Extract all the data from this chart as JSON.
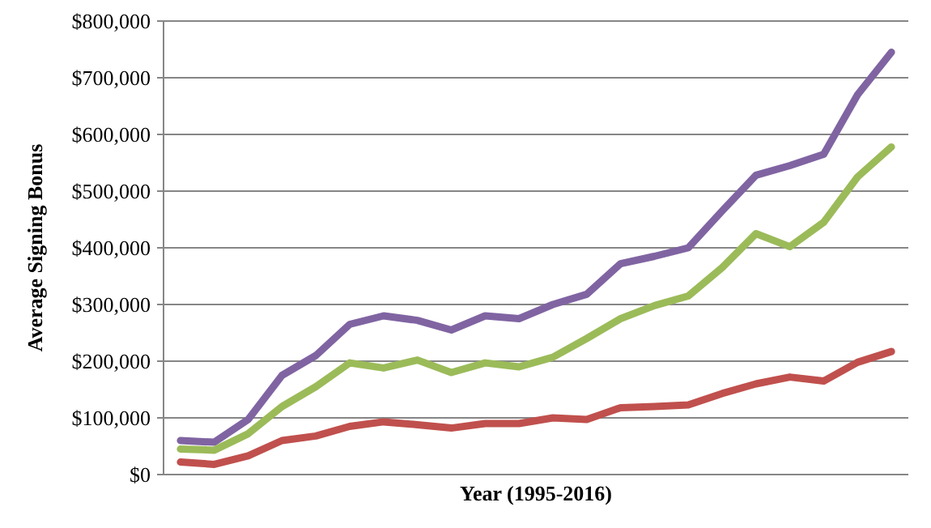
{
  "chart_data": {
    "type": "line",
    "xlabel": "Year (1995-2016)",
    "ylabel": "Average Signing Bonus",
    "categories": [
      null,
      null,
      null,
      null,
      null,
      null,
      null,
      null,
      null,
      null,
      null,
      null,
      null,
      null,
      null,
      null,
      null,
      null,
      null,
      null,
      null,
      null
    ],
    "series": [
      {
        "color": "#8064a2",
        "values": [
          60000,
          57000,
          97000,
          175000,
          210000,
          265000,
          280000,
          272000,
          255000,
          280000,
          275000,
          300000,
          318000,
          372000,
          385000,
          400000,
          465000,
          528000,
          545000,
          565000,
          670000,
          745000
        ]
      },
      {
        "color": "#9bbb59",
        "values": [
          45000,
          43000,
          72000,
          120000,
          155000,
          197000,
          188000,
          202000,
          180000,
          197000,
          190000,
          207000,
          240000,
          275000,
          298000,
          315000,
          365000,
          425000,
          402000,
          445000,
          525000,
          578000
        ]
      },
      {
        "color": "#c0504d",
        "values": [
          22000,
          18000,
          33000,
          60000,
          68000,
          85000,
          93000,
          88000,
          82000,
          90000,
          90000,
          100000,
          97000,
          118000,
          120000,
          123000,
          143000,
          160000,
          172000,
          165000,
          198000,
          217000
        ]
      }
    ],
    "ylim": [
      0,
      800000
    ],
    "yticks": [
      {
        "value": 0,
        "label": "$0"
      },
      {
        "value": 100000,
        "label": "$100,000"
      },
      {
        "value": 200000,
        "label": "$200,000"
      },
      {
        "value": 300000,
        "label": "$300,000"
      },
      {
        "value": 400000,
        "label": "$400,000"
      },
      {
        "value": 500000,
        "label": "$500,000"
      },
      {
        "value": 600000,
        "label": "$600,000"
      },
      {
        "value": 700000,
        "label": "$700,000"
      },
      {
        "value": 800000,
        "label": "$800,000"
      }
    ],
    "grid": "y",
    "marker": "none",
    "line_style": "solid",
    "tick_labels": "y"
  }
}
